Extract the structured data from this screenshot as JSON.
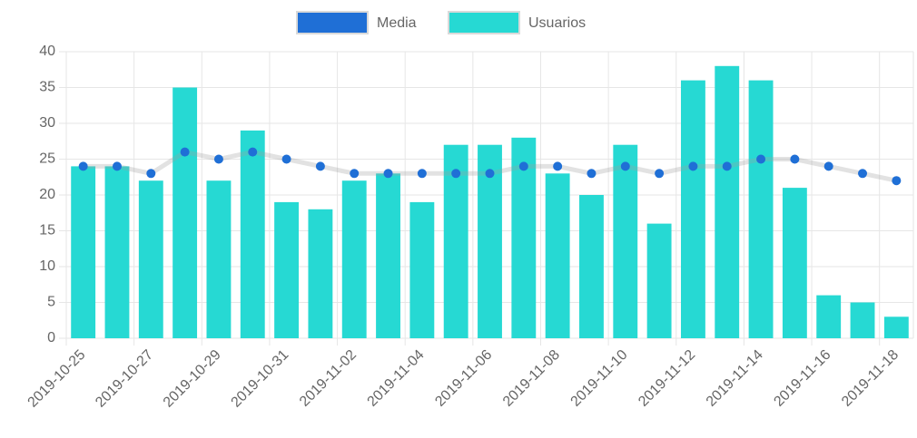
{
  "chart_data": {
    "type": "bar",
    "categories": [
      "2019-10-25",
      null,
      "2019-10-27",
      null,
      "2019-10-29",
      null,
      "2019-10-31",
      null,
      "2019-11-02",
      null,
      "2019-11-04",
      null,
      "2019-11-06",
      null,
      "2019-11-08",
      null,
      "2019-11-10",
      null,
      "2019-11-12",
      null,
      "2019-11-14",
      null,
      "2019-11-16",
      null,
      "2019-11-18"
    ],
    "series": [
      {
        "name": "Media",
        "type": "line",
        "color": "#1f6fd6",
        "values": [
          24,
          24,
          23,
          26,
          25,
          26,
          25,
          24,
          23,
          23,
          23,
          23,
          23,
          24,
          24,
          23,
          24,
          23,
          24,
          24,
          25,
          25,
          24,
          23,
          22
        ]
      },
      {
        "name": "Usuarios",
        "type": "bar",
        "color": "#26d9d3",
        "values": [
          24,
          24,
          22,
          35,
          22,
          29,
          19,
          18,
          22,
          23,
          19,
          27,
          27,
          28,
          23,
          20,
          27,
          16,
          36,
          38,
          36,
          21,
          6,
          5,
          3
        ]
      }
    ],
    "ylim": [
      0,
      40
    ],
    "yticks": [
      0,
      5,
      10,
      15,
      20,
      25,
      30,
      35,
      40
    ],
    "grid": true,
    "legend": "top"
  }
}
